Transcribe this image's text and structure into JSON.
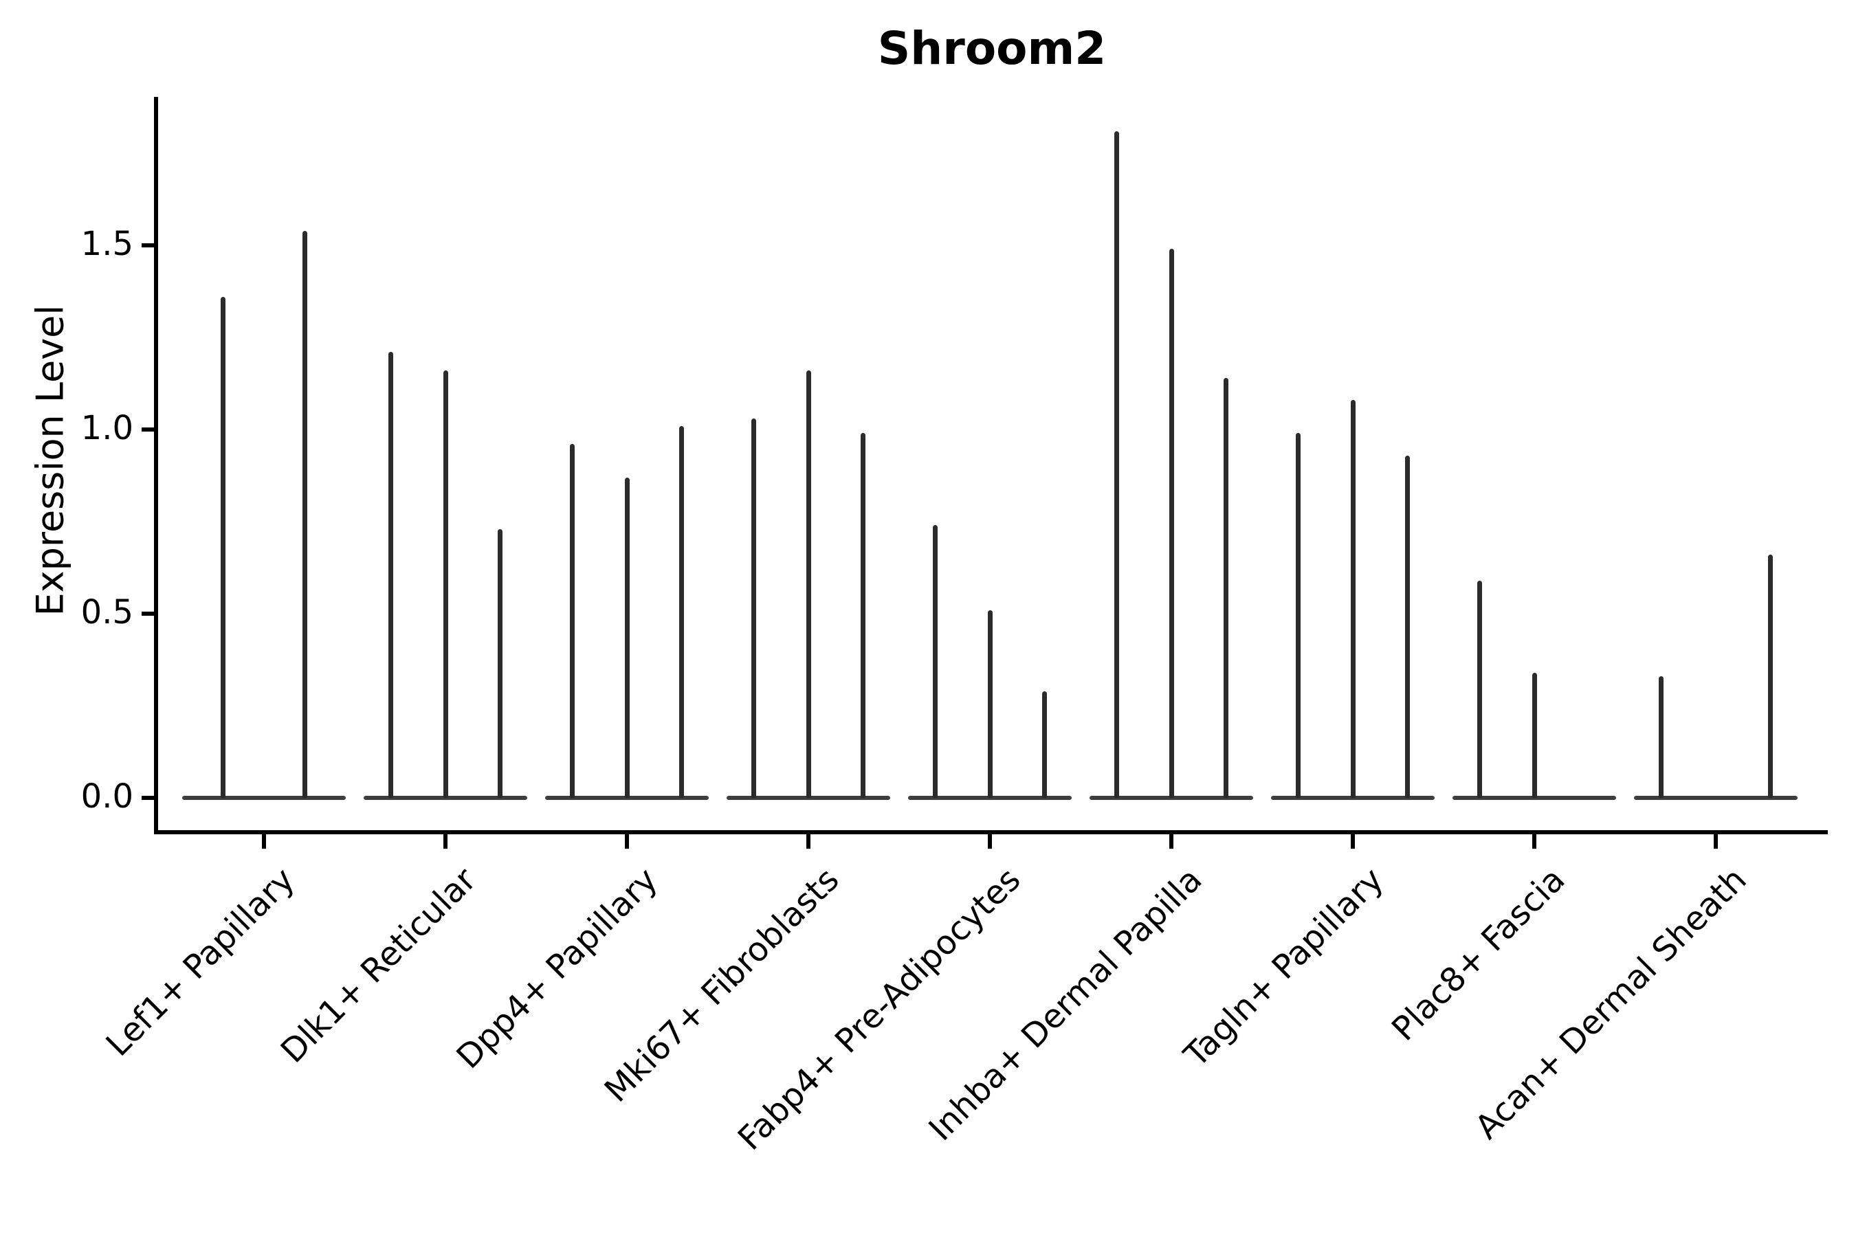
{
  "chart_data": {
    "type": "violin",
    "title": "Shroom2",
    "ylabel": "Expression Level",
    "xlabel": "",
    "categories": [
      "Lef1+ Papillary",
      "Dlk1+ Reticular",
      "Dpp4+ Papillary",
      "Mki67+ Fibroblasts",
      "Fabp4+ Pre-Adipocytes",
      "Inhba+ Dermal Papilla",
      "Tagln+ Papillary",
      "Plac8+ Fascia",
      "Acan+ Dermal Sheath"
    ],
    "series": [
      {
        "category": "Lef1+ Papillary",
        "violin_max_values": [
          1.36,
          1.54
        ]
      },
      {
        "category": "Dlk1+ Reticular",
        "violin_max_values": [
          1.21,
          1.16,
          0.73
        ]
      },
      {
        "category": "Dpp4+ Papillary",
        "violin_max_values": [
          0.96,
          0.87,
          1.01
        ]
      },
      {
        "category": "Mki67+ Fibroblasts",
        "violin_max_values": [
          1.03,
          1.16,
          0.99
        ]
      },
      {
        "category": "Fabp4+ Pre-Adipocytes",
        "violin_max_values": [
          0.74,
          0.51,
          0.29
        ]
      },
      {
        "category": "Inhba+ Dermal Papilla",
        "violin_max_values": [
          1.81,
          1.49,
          1.14
        ]
      },
      {
        "category": "Tagln+ Papillary",
        "violin_max_values": [
          0.99,
          1.08,
          0.93
        ]
      },
      {
        "category": "Plac8+ Fascia",
        "violin_max_values": [
          0.59,
          0.34,
          0.0
        ]
      },
      {
        "category": "Acan+ Dermal Sheath",
        "violin_max_values": [
          0.33,
          0.0,
          0.66
        ]
      }
    ],
    "ytick_labels": [
      "0.0",
      "0.5",
      "1.0",
      "1.5"
    ],
    "ytick_values": [
      0.0,
      0.5,
      1.0,
      1.5
    ],
    "ylim": [
      -0.09,
      1.9
    ],
    "grid": false,
    "legend": "none",
    "style_note": "violins are collapsed to a flat base line at 0 with a thin vertical spike up to each violin's maximum expression value",
    "ink_color": "#000000",
    "violin_color": "#2b2b2b",
    "background": "#ffffff"
  }
}
